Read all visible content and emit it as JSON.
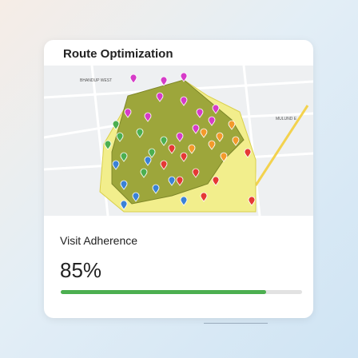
{
  "header": {
    "title": "Route Optimization"
  },
  "map": {
    "labels": [
      "BHANDUP WEST",
      "MULUND E"
    ]
  },
  "metric": {
    "label": "Visit Adherence",
    "value": 85,
    "value_label": "85%"
  }
}
